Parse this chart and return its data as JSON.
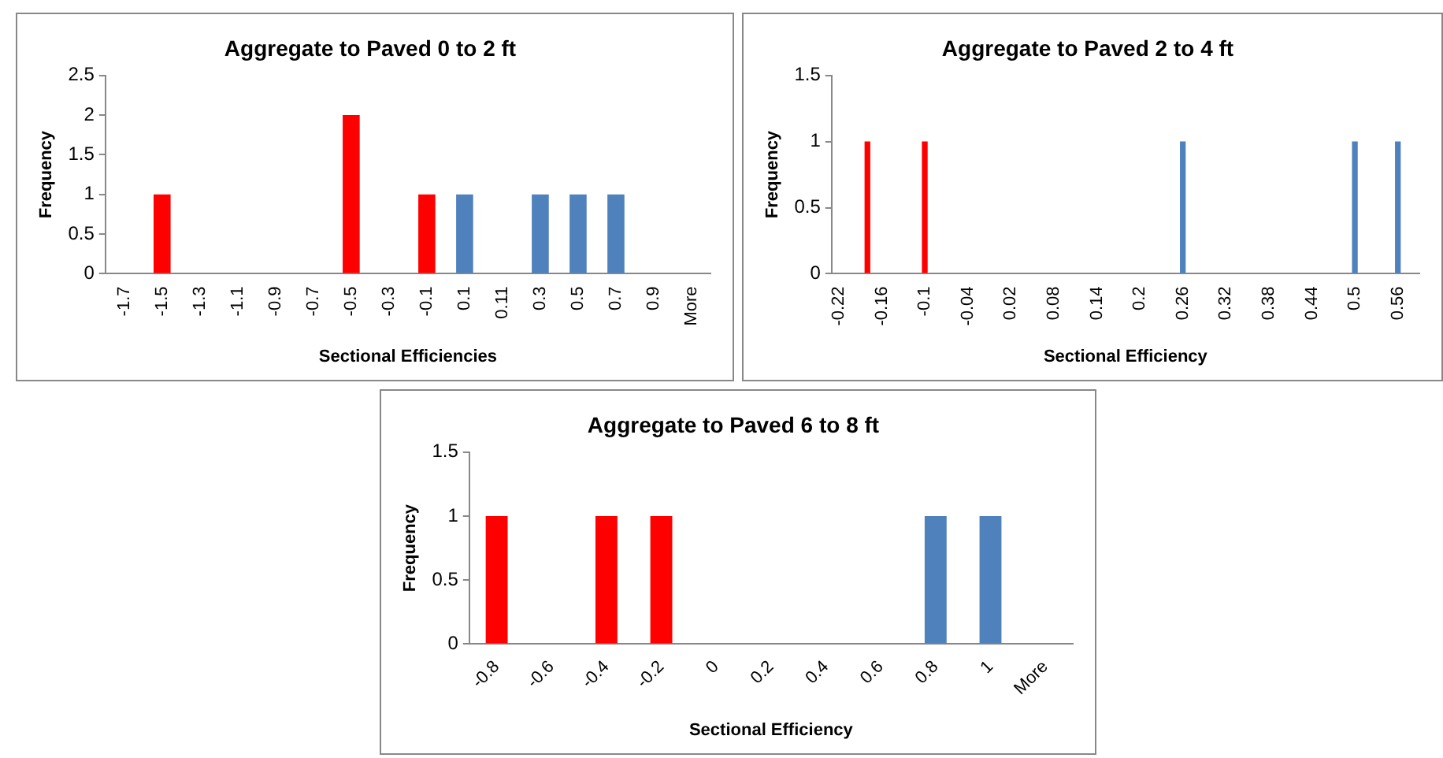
{
  "chart_data": [
    {
      "type": "bar",
      "title": "Aggregate to Paved 0 to 2 ft",
      "xlabel": "Sectional Efficiencies",
      "ylabel": "Frequency",
      "categories": [
        "-1.7",
        "-1.5",
        "-1.3",
        "-1.1",
        "-0.9",
        "-0.7",
        "-0.5",
        "-0.3",
        "-0.1",
        "0.1",
        "0.11",
        "0.3",
        "0.5",
        "0.7",
        "0.9",
        "More"
      ],
      "values": [
        0,
        1,
        0,
        0,
        0,
        0,
        2,
        0,
        1,
        1,
        0,
        1,
        1,
        1,
        0,
        0
      ],
      "colors": [
        "#ff0000",
        "#ff0000",
        "#ff0000",
        "#ff0000",
        "#ff0000",
        "#ff0000",
        "#ff0000",
        "#ff0000",
        "#ff0000",
        "#4f81bd",
        "#4f81bd",
        "#4f81bd",
        "#4f81bd",
        "#4f81bd",
        "#4f81bd",
        "#4f81bd"
      ],
      "ylim": [
        0,
        2.5
      ],
      "yticks": [
        0,
        0.5,
        1,
        1.5,
        2,
        2.5
      ]
    },
    {
      "type": "bar",
      "title": "Aggregate to Paved 2 to 4 ft",
      "xlabel": "Sectional Efficiency",
      "ylabel": "Frequency",
      "categories": [
        "-0.22",
        null,
        null,
        "-0.16",
        null,
        null,
        "-0.1",
        null,
        null,
        "-0.04",
        null,
        null,
        "0.02",
        null,
        null,
        "0.08",
        null,
        null,
        "0.14",
        null,
        null,
        "0.2",
        null,
        null,
        "0.26",
        null,
        null,
        "0.32",
        null,
        null,
        "0.38",
        null,
        null,
        "0.44",
        null,
        null,
        "0.5",
        null,
        null,
        "0.56",
        null
      ],
      "values": [
        0,
        0,
        1,
        0,
        0,
        0,
        1,
        0,
        0,
        0,
        0,
        0,
        0,
        0,
        0,
        0,
        0,
        0,
        0,
        0,
        0,
        0,
        0,
        0,
        1,
        0,
        0,
        0,
        0,
        0,
        0,
        0,
        0,
        0,
        0,
        0,
        1,
        0,
        0,
        1,
        0
      ],
      "colors": [
        "#ff0000",
        "#ff0000",
        "#ff0000",
        "#ff0000",
        "#ff0000",
        "#ff0000",
        "#ff0000",
        "#ff0000",
        "#ff0000",
        "#ff0000",
        "#ff0000",
        "#ff0000",
        "#4f81bd",
        "#4f81bd",
        "#4f81bd",
        "#4f81bd",
        "#4f81bd",
        "#4f81bd",
        "#4f81bd",
        "#4f81bd",
        "#4f81bd",
        "#4f81bd",
        "#4f81bd",
        "#4f81bd",
        "#4f81bd",
        "#4f81bd",
        "#4f81bd",
        "#4f81bd",
        "#4f81bd",
        "#4f81bd",
        "#4f81bd",
        "#4f81bd",
        "#4f81bd",
        "#4f81bd",
        "#4f81bd",
        "#4f81bd",
        "#4f81bd",
        "#4f81bd",
        "#4f81bd",
        "#4f81bd",
        "#4f81bd"
      ],
      "ylim": [
        0,
        1.5
      ],
      "yticks": [
        0,
        0.5,
        1,
        1.5
      ]
    },
    {
      "type": "bar",
      "title": "Aggregate to Paved 6 to 8 ft",
      "xlabel": "Sectional Efficiency",
      "ylabel": "Frequency",
      "categories": [
        "-0.8",
        "-0.6",
        "-0.4",
        "-0.2",
        "0",
        "0.2",
        "0.4",
        "0.6",
        "0.8",
        "1",
        "More"
      ],
      "values": [
        1,
        0,
        1,
        1,
        0,
        0,
        0,
        0,
        1,
        1,
        0
      ],
      "colors": [
        "#ff0000",
        "#ff0000",
        "#ff0000",
        "#ff0000",
        "#4f81bd",
        "#4f81bd",
        "#4f81bd",
        "#4f81bd",
        "#4f81bd",
        "#4f81bd",
        "#4f81bd"
      ],
      "ylim": [
        0,
        1.5
      ],
      "yticks": [
        0,
        0.5,
        1,
        1.5
      ]
    }
  ]
}
